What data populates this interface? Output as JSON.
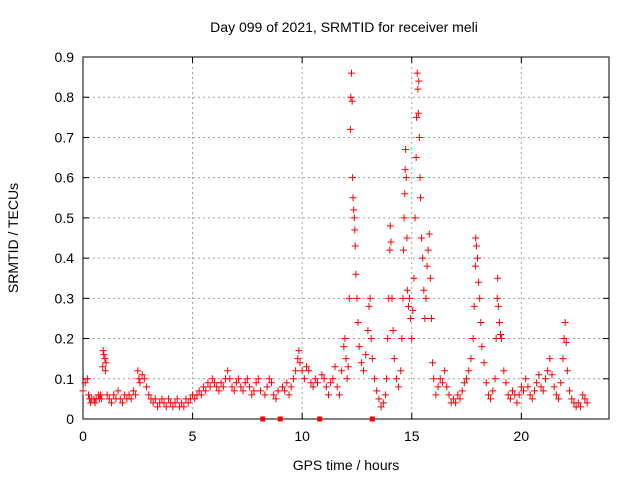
{
  "chart_data": {
    "type": "scatter",
    "title": "Day 099 of 2021, SRMTID for receiver meli",
    "xlabel": "GPS time / hours",
    "ylabel": "SRMTID / TECUs",
    "xlim": [
      0,
      24
    ],
    "ylim": [
      0,
      0.9
    ],
    "x_ticks": [
      0,
      5,
      10,
      15,
      20
    ],
    "x_tick_labels": [
      "0",
      "5",
      "10",
      "15",
      "20"
    ],
    "y_ticks": [
      0,
      0.1,
      0.2,
      0.3,
      0.4,
      0.5,
      0.6,
      0.7,
      0.8,
      0.9
    ],
    "y_tick_labels": [
      "0",
      "0.1",
      "0.2",
      "0.3",
      "0.4",
      "0.5",
      "0.6",
      "0.7",
      "0.8",
      "0.9"
    ],
    "grid": true,
    "marker": "+",
    "color": "#ff0000",
    "gap_markers_x": [
      8.2,
      9.0,
      10.8,
      13.2
    ],
    "series": [
      {
        "name": "SRMTID",
        "points": [
          [
            0.0,
            0.07
          ],
          [
            0.1,
            0.09
          ],
          [
            0.2,
            0.1
          ],
          [
            0.25,
            0.06
          ],
          [
            0.3,
            0.05
          ],
          [
            0.35,
            0.04
          ],
          [
            0.4,
            0.05
          ],
          [
            0.5,
            0.05
          ],
          [
            0.55,
            0.04
          ],
          [
            0.6,
            0.05
          ],
          [
            0.7,
            0.06
          ],
          [
            0.75,
            0.05
          ],
          [
            0.8,
            0.06
          ],
          [
            0.85,
            0.05
          ],
          [
            0.9,
            0.13
          ],
          [
            0.92,
            0.17
          ],
          [
            0.95,
            0.16
          ],
          [
            1.0,
            0.15
          ],
          [
            1.02,
            0.12
          ],
          [
            1.05,
            0.14
          ],
          [
            1.1,
            0.06
          ],
          [
            1.2,
            0.05
          ],
          [
            1.3,
            0.04
          ],
          [
            1.4,
            0.06
          ],
          [
            1.5,
            0.05
          ],
          [
            1.6,
            0.07
          ],
          [
            1.7,
            0.05
          ],
          [
            1.8,
            0.04
          ],
          [
            1.9,
            0.06
          ],
          [
            2.0,
            0.05
          ],
          [
            2.1,
            0.06
          ],
          [
            2.2,
            0.05
          ],
          [
            2.3,
            0.07
          ],
          [
            2.4,
            0.06
          ],
          [
            2.5,
            0.12
          ],
          [
            2.55,
            0.1
          ],
          [
            2.6,
            0.09
          ],
          [
            2.7,
            0.11
          ],
          [
            2.8,
            0.1
          ],
          [
            2.9,
            0.08
          ],
          [
            3.0,
            0.06
          ],
          [
            3.1,
            0.05
          ],
          [
            3.2,
            0.04
          ],
          [
            3.3,
            0.05
          ],
          [
            3.4,
            0.03
          ],
          [
            3.5,
            0.04
          ],
          [
            3.6,
            0.05
          ],
          [
            3.7,
            0.04
          ],
          [
            3.8,
            0.03
          ],
          [
            3.9,
            0.05
          ],
          [
            4.0,
            0.04
          ],
          [
            4.1,
            0.03
          ],
          [
            4.2,
            0.04
          ],
          [
            4.3,
            0.05
          ],
          [
            4.4,
            0.03
          ],
          [
            4.5,
            0.04
          ],
          [
            4.6,
            0.03
          ],
          [
            4.7,
            0.05
          ],
          [
            4.8,
            0.04
          ],
          [
            4.9,
            0.05
          ],
          [
            5.0,
            0.06
          ],
          [
            5.1,
            0.05
          ],
          [
            5.2,
            0.06
          ],
          [
            5.3,
            0.07
          ],
          [
            5.4,
            0.06
          ],
          [
            5.5,
            0.08
          ],
          [
            5.6,
            0.07
          ],
          [
            5.7,
            0.09
          ],
          [
            5.8,
            0.08
          ],
          [
            5.9,
            0.1
          ],
          [
            6.0,
            0.09
          ],
          [
            6.1,
            0.08
          ],
          [
            6.2,
            0.07
          ],
          [
            6.3,
            0.09
          ],
          [
            6.4,
            0.08
          ],
          [
            6.5,
            0.1
          ],
          [
            6.6,
            0.12
          ],
          [
            6.7,
            0.1
          ],
          [
            6.8,
            0.08
          ],
          [
            6.9,
            0.07
          ],
          [
            7.0,
            0.09
          ],
          [
            7.1,
            0.1
          ],
          [
            7.2,
            0.08
          ],
          [
            7.3,
            0.07
          ],
          [
            7.4,
            0.09
          ],
          [
            7.5,
            0.1
          ],
          [
            7.6,
            0.08
          ],
          [
            7.7,
            0.06
          ],
          [
            7.8,
            0.07
          ],
          [
            7.9,
            0.09
          ],
          [
            8.0,
            0.1
          ],
          [
            8.1,
            0.07
          ],
          [
            8.3,
            0.06
          ],
          [
            8.4,
            0.08
          ],
          [
            8.5,
            0.1
          ],
          [
            8.6,
            0.09
          ],
          [
            8.7,
            0.06
          ],
          [
            8.8,
            0.05
          ],
          [
            8.9,
            0.07
          ],
          [
            9.1,
            0.08
          ],
          [
            9.2,
            0.07
          ],
          [
            9.3,
            0.09
          ],
          [
            9.4,
            0.06
          ],
          [
            9.5,
            0.08
          ],
          [
            9.6,
            0.1
          ],
          [
            9.7,
            0.12
          ],
          [
            9.8,
            0.15
          ],
          [
            9.85,
            0.17
          ],
          [
            9.9,
            0.14
          ],
          [
            10.0,
            0.12
          ],
          [
            10.1,
            0.1
          ],
          [
            10.2,
            0.13
          ],
          [
            10.3,
            0.12
          ],
          [
            10.4,
            0.09
          ],
          [
            10.5,
            0.08
          ],
          [
            10.6,
            0.1
          ],
          [
            10.7,
            0.09
          ],
          [
            10.9,
            0.11
          ],
          [
            11.0,
            0.1
          ],
          [
            11.1,
            0.08
          ],
          [
            11.2,
            0.06
          ],
          [
            11.3,
            0.09
          ],
          [
            11.4,
            0.1
          ],
          [
            11.5,
            0.13
          ],
          [
            11.6,
            0.08
          ],
          [
            11.7,
            0.06
          ],
          [
            11.8,
            0.12
          ],
          [
            11.9,
            0.18
          ],
          [
            11.95,
            0.2
          ],
          [
            12.0,
            0.15
          ],
          [
            12.05,
            0.1
          ],
          [
            12.1,
            0.13
          ],
          [
            12.15,
            0.3
          ],
          [
            12.2,
            0.72
          ],
          [
            12.22,
            0.8
          ],
          [
            12.25,
            0.86
          ],
          [
            12.28,
            0.79
          ],
          [
            12.3,
            0.6
          ],
          [
            12.32,
            0.55
          ],
          [
            12.35,
            0.52
          ],
          [
            12.38,
            0.5
          ],
          [
            12.4,
            0.47
          ],
          [
            12.42,
            0.43
          ],
          [
            12.45,
            0.36
          ],
          [
            12.5,
            0.3
          ],
          [
            12.55,
            0.24
          ],
          [
            12.6,
            0.18
          ],
          [
            12.7,
            0.14
          ],
          [
            12.8,
            0.12
          ],
          [
            12.9,
            0.16
          ],
          [
            13.0,
            0.22
          ],
          [
            13.05,
            0.28
          ],
          [
            13.1,
            0.3
          ],
          [
            13.15,
            0.2
          ],
          [
            13.2,
            0.15
          ],
          [
            13.3,
            0.1
          ],
          [
            13.4,
            0.07
          ],
          [
            13.5,
            0.05
          ],
          [
            13.6,
            0.03
          ],
          [
            13.7,
            0.04
          ],
          [
            13.8,
            0.06
          ],
          [
            13.85,
            0.1
          ],
          [
            13.9,
            0.2
          ],
          [
            13.95,
            0.3
          ],
          [
            14.0,
            0.42
          ],
          [
            14.02,
            0.48
          ],
          [
            14.05,
            0.44
          ],
          [
            14.1,
            0.3
          ],
          [
            14.15,
            0.22
          ],
          [
            14.2,
            0.15
          ],
          [
            14.3,
            0.1
          ],
          [
            14.4,
            0.08
          ],
          [
            14.5,
            0.12
          ],
          [
            14.55,
            0.2
          ],
          [
            14.6,
            0.3
          ],
          [
            14.62,
            0.42
          ],
          [
            14.65,
            0.5
          ],
          [
            14.68,
            0.56
          ],
          [
            14.7,
            0.62
          ],
          [
            14.72,
            0.67
          ],
          [
            14.75,
            0.6
          ],
          [
            14.78,
            0.45
          ],
          [
            14.8,
            0.32
          ],
          [
            14.85,
            0.28
          ],
          [
            14.9,
            0.3
          ],
          [
            14.95,
            0.25
          ],
          [
            15.0,
            0.2
          ],
          [
            15.05,
            0.27
          ],
          [
            15.1,
            0.35
          ],
          [
            15.15,
            0.5
          ],
          [
            15.2,
            0.65
          ],
          [
            15.22,
            0.75
          ],
          [
            15.25,
            0.86
          ],
          [
            15.28,
            0.82
          ],
          [
            15.3,
            0.76
          ],
          [
            15.32,
            0.84
          ],
          [
            15.35,
            0.7
          ],
          [
            15.38,
            0.6
          ],
          [
            15.4,
            0.55
          ],
          [
            15.45,
            0.45
          ],
          [
            15.5,
            0.4
          ],
          [
            15.55,
            0.32
          ],
          [
            15.6,
            0.25
          ],
          [
            15.65,
            0.3
          ],
          [
            15.7,
            0.38
          ],
          [
            15.75,
            0.42
          ],
          [
            15.8,
            0.46
          ],
          [
            15.85,
            0.35
          ],
          [
            15.9,
            0.25
          ],
          [
            15.95,
            0.14
          ],
          [
            16.0,
            0.1
          ],
          [
            16.1,
            0.06
          ],
          [
            16.2,
            0.08
          ],
          [
            16.3,
            0.1
          ],
          [
            16.4,
            0.09
          ],
          [
            16.5,
            0.12
          ],
          [
            16.6,
            0.08
          ],
          [
            16.7,
            0.06
          ],
          [
            16.8,
            0.04
          ],
          [
            16.9,
            0.05
          ],
          [
            17.0,
            0.04
          ],
          [
            17.1,
            0.06
          ],
          [
            17.2,
            0.05
          ],
          [
            17.3,
            0.07
          ],
          [
            17.4,
            0.09
          ],
          [
            17.5,
            0.1
          ],
          [
            17.6,
            0.12
          ],
          [
            17.7,
            0.15
          ],
          [
            17.8,
            0.2
          ],
          [
            17.85,
            0.28
          ],
          [
            17.9,
            0.38
          ],
          [
            17.92,
            0.45
          ],
          [
            17.95,
            0.43
          ],
          [
            18.0,
            0.4
          ],
          [
            18.05,
            0.34
          ],
          [
            18.1,
            0.3
          ],
          [
            18.15,
            0.24
          ],
          [
            18.2,
            0.18
          ],
          [
            18.3,
            0.14
          ],
          [
            18.4,
            0.09
          ],
          [
            18.5,
            0.06
          ],
          [
            18.6,
            0.05
          ],
          [
            18.7,
            0.07
          ],
          [
            18.8,
            0.1
          ],
          [
            18.85,
            0.2
          ],
          [
            18.9,
            0.3
          ],
          [
            18.92,
            0.35
          ],
          [
            18.95,
            0.28
          ],
          [
            19.0,
            0.24
          ],
          [
            19.05,
            0.21
          ],
          [
            19.1,
            0.2
          ],
          [
            19.2,
            0.12
          ],
          [
            19.3,
            0.09
          ],
          [
            19.4,
            0.06
          ],
          [
            19.5,
            0.05
          ],
          [
            19.6,
            0.07
          ],
          [
            19.7,
            0.06
          ],
          [
            19.8,
            0.04
          ],
          [
            19.9,
            0.06
          ],
          [
            20.0,
            0.08
          ],
          [
            20.1,
            0.07
          ],
          [
            20.2,
            0.1
          ],
          [
            20.3,
            0.08
          ],
          [
            20.4,
            0.06
          ],
          [
            20.5,
            0.05
          ],
          [
            20.6,
            0.07
          ],
          [
            20.7,
            0.09
          ],
          [
            20.8,
            0.11
          ],
          [
            20.9,
            0.08
          ],
          [
            21.0,
            0.07
          ],
          [
            21.1,
            0.1
          ],
          [
            21.2,
            0.12
          ],
          [
            21.3,
            0.15
          ],
          [
            21.4,
            0.11
          ],
          [
            21.5,
            0.08
          ],
          [
            21.6,
            0.06
          ],
          [
            21.7,
            0.05
          ],
          [
            21.8,
            0.09
          ],
          [
            21.9,
            0.15
          ],
          [
            21.95,
            0.2
          ],
          [
            22.0,
            0.24
          ],
          [
            22.05,
            0.19
          ],
          [
            22.1,
            0.12
          ],
          [
            22.2,
            0.07
          ],
          [
            22.3,
            0.05
          ],
          [
            22.4,
            0.04
          ],
          [
            22.5,
            0.03
          ],
          [
            22.6,
            0.04
          ],
          [
            22.7,
            0.03
          ],
          [
            22.8,
            0.06
          ],
          [
            22.9,
            0.05
          ],
          [
            23.0,
            0.04
          ]
        ]
      }
    ]
  }
}
